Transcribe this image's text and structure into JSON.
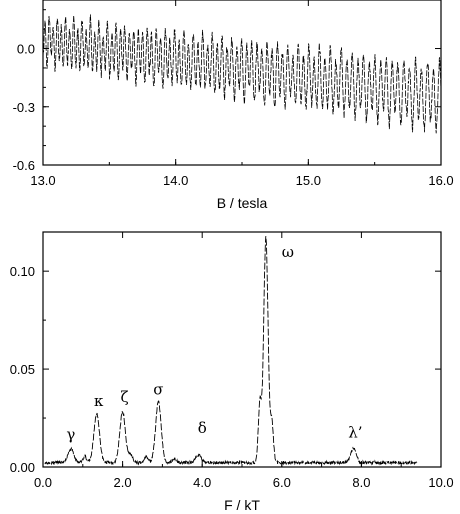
{
  "chart_data": [
    {
      "type": "line",
      "xlabel": "B / tesla",
      "ylabel": "",
      "xlim": [
        13.0,
        16.0
      ],
      "ylim": [
        -0.6,
        0.25
      ],
      "xticks": [
        "13.0",
        "14.0",
        "15.0",
        "16.0"
      ],
      "yticks": [
        "0.0",
        "-0.3",
        "-0.6"
      ],
      "ytick_values": [
        0.0,
        -0.3,
        -0.6
      ],
      "xtick_values": [
        13.0,
        14.0,
        15.0,
        16.0
      ],
      "trend": {
        "start": 0.04,
        "end": -0.25
      },
      "oscillation": {
        "dominant_frequency_kT": 5.6,
        "amplitude": 0.13
      },
      "grid": false
    },
    {
      "type": "line",
      "xlabel": "F / kT",
      "ylabel": "",
      "xlim": [
        0.0,
        10.0
      ],
      "ylim": [
        0.0,
        0.12
      ],
      "xticks": [
        "0.0",
        "2.0",
        "4.0",
        "6.0",
        "8.0",
        "10.0"
      ],
      "yticks": [
        "0.10",
        "0.05",
        "0.00"
      ],
      "ytick_values": [
        0.1,
        0.05,
        0.0
      ],
      "xtick_values": [
        0.0,
        2.0,
        4.0,
        6.0,
        8.0,
        10.0
      ],
      "peaks": [
        {
          "label": "γ",
          "x": 0.7,
          "y": 0.007
        },
        {
          "label": "κ",
          "x": 1.35,
          "y": 0.025
        },
        {
          "label": "ζ",
          "x": 2.0,
          "y": 0.026
        },
        {
          "label": "σ",
          "x": 2.9,
          "y": 0.031
        },
        {
          "label": "δ",
          "x": 3.9,
          "y": 0.004
        },
        {
          "label": "ω",
          "x": 5.6,
          "y": 0.115
        },
        {
          "label": "λ’",
          "x": 7.8,
          "y": 0.007
        }
      ],
      "grid": false
    }
  ]
}
